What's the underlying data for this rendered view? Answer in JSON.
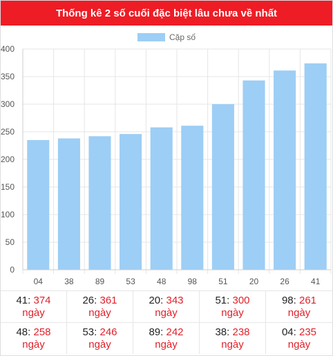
{
  "header": {
    "title": "Thống kê 2 số cuối đặc biệt lâu chưa về nhất"
  },
  "chart_data": {
    "type": "bar",
    "legend": "top",
    "grid": true,
    "color": "#9dcef5",
    "categories": [
      "04",
      "38",
      "89",
      "53",
      "48",
      "98",
      "51",
      "20",
      "26",
      "41"
    ],
    "series": [
      {
        "name": "Cặp số",
        "values": [
          235,
          238,
          242,
          246,
          258,
          261,
          300,
          343,
          361,
          374
        ]
      }
    ],
    "ylim": [
      0,
      400
    ],
    "yticks": [
      "0",
      "50",
      "100",
      "150",
      "200",
      "250",
      "300",
      "350",
      "400"
    ]
  },
  "stats": {
    "unit": "ngày",
    "rows": [
      [
        {
          "num": "41",
          "val": "374"
        },
        {
          "num": "26",
          "val": "361"
        },
        {
          "num": "20",
          "val": "343"
        },
        {
          "num": "51",
          "val": "300"
        },
        {
          "num": "98",
          "val": "261"
        }
      ],
      [
        {
          "num": "48",
          "val": "258"
        },
        {
          "num": "53",
          "val": "246"
        },
        {
          "num": "89",
          "val": "242"
        },
        {
          "num": "38",
          "val": "238"
        },
        {
          "num": "04",
          "val": "235"
        }
      ]
    ]
  }
}
